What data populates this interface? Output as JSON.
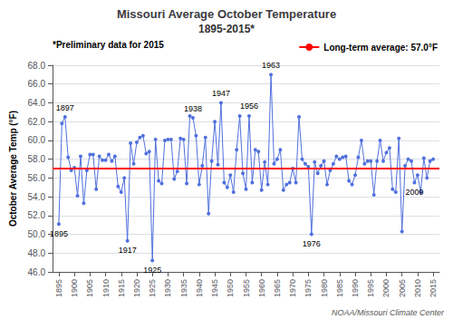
{
  "chart_data": {
    "type": "line",
    "title": "Missouri Average October Temperature",
    "subtitle": "1895-2015*",
    "ylabel": "October Average Temp (°F)",
    "note": "*Preliminary data for 2015",
    "footer": "NOAA/Missouri Climate Center",
    "reference_line": {
      "value": 57.0,
      "label": "Long-term average: 57.0°F",
      "color": "#ff0000"
    },
    "annotations": [
      {
        "text": "1895",
        "x": 1895
      },
      {
        "text": "1897",
        "x": 1897
      },
      {
        "text": "1917",
        "x": 1917
      },
      {
        "text": "1925",
        "x": 1925
      },
      {
        "text": "1938",
        "x": 1938
      },
      {
        "text": "1947",
        "x": 1947
      },
      {
        "text": "1956",
        "x": 1956
      },
      {
        "text": "1963",
        "x": 1963
      },
      {
        "text": "1976",
        "x": 1976
      },
      {
        "text": "2009",
        "x": 2009
      }
    ],
    "x": [
      1895,
      1896,
      1897,
      1898,
      1899,
      1900,
      1901,
      1902,
      1903,
      1904,
      1905,
      1906,
      1907,
      1908,
      1909,
      1910,
      1911,
      1912,
      1913,
      1914,
      1915,
      1916,
      1917,
      1918,
      1919,
      1920,
      1921,
      1922,
      1923,
      1924,
      1925,
      1926,
      1927,
      1928,
      1929,
      1930,
      1931,
      1932,
      1933,
      1934,
      1935,
      1936,
      1937,
      1938,
      1939,
      1940,
      1941,
      1942,
      1943,
      1944,
      1945,
      1946,
      1947,
      1948,
      1949,
      1950,
      1951,
      1952,
      1953,
      1954,
      1955,
      1956,
      1957,
      1958,
      1959,
      1960,
      1961,
      1962,
      1963,
      1964,
      1965,
      1966,
      1967,
      1968,
      1969,
      1970,
      1971,
      1972,
      1973,
      1974,
      1975,
      1976,
      1977,
      1978,
      1979,
      1980,
      1981,
      1982,
      1983,
      1984,
      1985,
      1986,
      1987,
      1988,
      1989,
      1990,
      1991,
      1992,
      1993,
      1994,
      1995,
      1996,
      1997,
      1998,
      1999,
      2000,
      2001,
      2002,
      2003,
      2004,
      2005,
      2006,
      2007,
      2008,
      2009,
      2010,
      2011,
      2012,
      2013,
      2014,
      2015
    ],
    "values": [
      51.1,
      61.8,
      62.5,
      58.2,
      56.8,
      57.1,
      54.1,
      58.3,
      53.3,
      56.8,
      58.5,
      58.5,
      54.8,
      58.3,
      57.9,
      57.9,
      58.5,
      57.8,
      58.3,
      55.1,
      54.5,
      56.0,
      49.3,
      59.7,
      57.5,
      59.8,
      60.3,
      60.5,
      58.6,
      58.8,
      47.2,
      60.1,
      55.7,
      55.4,
      60.0,
      60.1,
      60.1,
      55.9,
      56.7,
      60.2,
      60.1,
      55.4,
      62.6,
      62.4,
      60.5,
      55.3,
      57.3,
      60.3,
      52.2,
      57.8,
      62.0,
      57.4,
      64.0,
      55.5,
      55.0,
      56.3,
      54.5,
      59.0,
      62.6,
      56.5,
      54.8,
      62.6,
      55.5,
      59.0,
      58.8,
      54.7,
      57.7,
      55.3,
      67.0,
      57.5,
      58.0,
      59.0,
      54.7,
      55.3,
      55.5,
      57.0,
      55.5,
      62.5,
      58.0,
      57.5,
      57.2,
      50.0,
      57.7,
      56.5,
      57.3,
      57.8,
      55.3,
      56.8,
      57.5,
      58.3,
      58.0,
      58.2,
      58.3,
      55.7,
      55.3,
      56.3,
      58.2,
      60.0,
      57.5,
      57.8,
      57.8,
      54.2,
      57.8,
      60.0,
      57.8,
      58.7,
      59.2,
      54.8,
      54.5,
      60.2,
      50.3,
      57.3,
      58.0,
      57.8,
      55.5,
      56.3,
      54.5,
      58.1,
      56.0,
      57.8,
      58.0
    ],
    "xlim": [
      1893,
      2017
    ],
    "xticks": [
      1895,
      1900,
      1905,
      1910,
      1915,
      1920,
      1925,
      1930,
      1935,
      1940,
      1945,
      1950,
      1955,
      1960,
      1965,
      1970,
      1975,
      1980,
      1985,
      1990,
      1995,
      2000,
      2005,
      2010,
      2015
    ],
    "ylim": [
      46.0,
      68.0
    ],
    "yticks": [
      {
        "value": 46,
        "label": "46.0"
      },
      {
        "value": 48,
        "label": "48.0"
      },
      {
        "value": 50,
        "label": "50.0"
      },
      {
        "value": 52,
        "label": "52.0"
      },
      {
        "value": 54,
        "label": "54.0"
      },
      {
        "value": 56,
        "label": "56.0"
      },
      {
        "value": 58,
        "label": "58.0"
      },
      {
        "value": 60,
        "label": "60.0"
      },
      {
        "value": 62,
        "label": "62.0"
      },
      {
        "value": 64,
        "label": "64.0"
      },
      {
        "value": 66,
        "label": "66.0"
      },
      {
        "value": 68,
        "label": "68.0"
      }
    ],
    "grid": true
  }
}
